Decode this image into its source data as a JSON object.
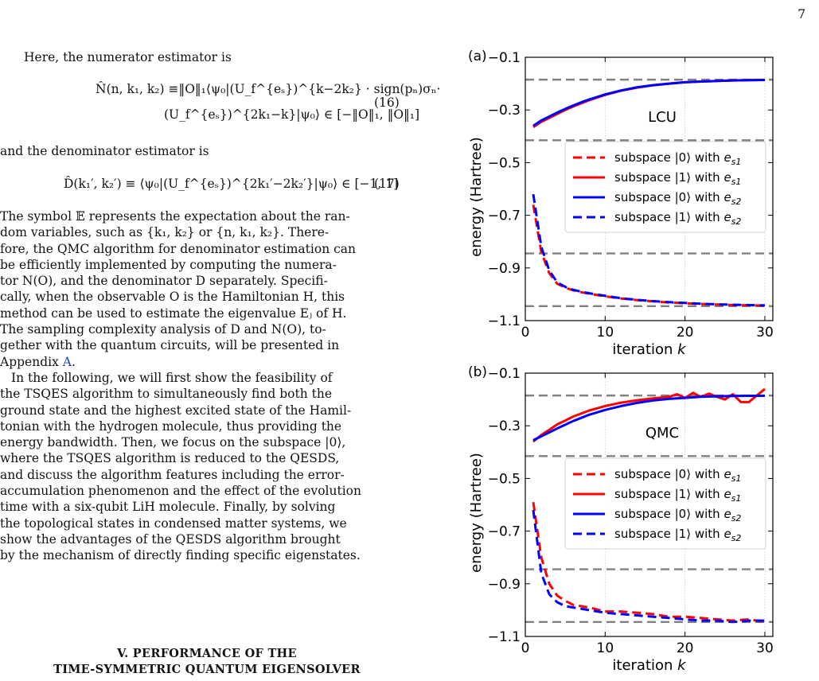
{
  "page_number": "7",
  "text": {
    "p1": "Here, the numerator estimator is",
    "eq16_line1": "N̂(n, k₁, k₂) ≡‖O‖₁⟨ψ₀|(U_f^{eₛ})^{k−2k₂} · sign(pₙ)σₙ·",
    "eq16_line2": "(U_f^{eₛ})^{2k₁−k}|ψ₀⟩ ∈ [−‖O‖₁, ‖O‖₁]",
    "eq16_num": "(16)",
    "p2": "and the denominator estimator is",
    "eq17": "D̂(k₁′, k₂′) ≡ ⟨ψ₀|(U_f^{eₛ})^{2k₁′−2k₂′}|ψ₀⟩ ∈ [−1, 1]",
    "eq17_num": "(17)",
    "p3_lines": [
      "The symbol 𝔼 represents the expectation about the ran-",
      "dom variables, such as {k₁, k₂} or {n, k₁, k₂}. There-",
      "fore, the QMC algorithm for denominator estimation can",
      "be efficiently implemented by computing the numera-",
      "tor N(O), and the denominator D separately. Specifi-",
      "cally, when the observable O is the Hamiltonian H, this",
      "method can be used to estimate the eigenvalue Eⱼ of H.",
      "The sampling complexity analysis of D and N(O), to-",
      "gether with the quantum circuits, will be presented in"
    ],
    "p3_last_prefix": "Appendix ",
    "p3_link": "A",
    "p3_last_suffix": ".",
    "p4_lines": [
      "In the following, we will first show the feasibility of",
      "the TSQES algorithm to simultaneously find both the",
      "ground state and the highest excited state of the Hamil-",
      "tonian with the hydrogen molecule, thus providing the",
      "energy bandwidth. Then, we focus on the subspace |0⟩,",
      "where the TSQES algorithm is reduced to the QESDS,",
      "and discuss the algorithm features including the error-",
      "accumulation phenomenon and the effect of the evolution",
      "time with a six-qubit LiH molecule. Finally, by solving",
      "the topological states in condensed matter systems, we",
      "show the advantages of the QESDS algorithm brought",
      "by the mechanism of directly finding specific eigenstates."
    ],
    "heading_line1": "V. PERFORMANCE OF THE",
    "heading_line2": "TIME-SYMMETRIC QUANTUM EIGENSOLVER"
  },
  "chart_data": [
    {
      "type": "line",
      "panel_label": "(a)",
      "annotation": "LCU",
      "xlabel": "iteration k",
      "ylabel": "energy (Hartree)",
      "xlim": [
        0,
        31
      ],
      "ylim": [
        -1.1,
        -0.1
      ],
      "xticks": [
        0,
        10,
        20,
        30
      ],
      "yticks": [
        -1.1,
        -0.9,
        -0.7,
        -0.5,
        -0.3,
        -0.1
      ],
      "ytick_labels": [
        "−1.1",
        "−0.9",
        "−0.7",
        "−0.5",
        "−0.3",
        "−0.1"
      ],
      "hlines": [
        -0.185,
        -0.415,
        -0.845,
        -1.045
      ],
      "legend": "upper right",
      "series": [
        {
          "name": "subspace |0⟩ with e_s1",
          "color": "#ff0000",
          "dash": "dashed",
          "x": [
            1,
            2,
            3,
            4,
            5,
            6,
            7,
            8,
            10,
            12,
            14,
            16,
            18,
            20,
            22,
            24,
            26,
            28,
            30
          ],
          "y": [
            -0.66,
            -0.84,
            -0.92,
            -0.96,
            -0.975,
            -0.985,
            -0.992,
            -0.998,
            -1.008,
            -1.016,
            -1.022,
            -1.027,
            -1.031,
            -1.034,
            -1.037,
            -1.039,
            -1.041,
            -1.042,
            -1.043
          ]
        },
        {
          "name": "subspace |1⟩ with e_s1",
          "color": "#ff0000",
          "dash": "solid",
          "x": [
            1,
            2,
            3,
            4,
            5,
            6,
            7,
            8,
            10,
            12,
            14,
            16,
            18,
            20,
            22,
            24,
            26,
            28,
            30
          ],
          "y": [
            -0.365,
            -0.345,
            -0.33,
            -0.315,
            -0.3,
            -0.287,
            -0.275,
            -0.263,
            -0.243,
            -0.227,
            -0.215,
            -0.206,
            -0.2,
            -0.195,
            -0.192,
            -0.19,
            -0.188,
            -0.187,
            -0.186
          ]
        },
        {
          "name": "subspace |0⟩ with e_s2",
          "color": "#0000ff",
          "dash": "solid",
          "x": [
            1,
            2,
            3,
            4,
            5,
            6,
            7,
            8,
            10,
            12,
            14,
            16,
            18,
            20,
            22,
            24,
            26,
            28,
            30
          ],
          "y": [
            -0.36,
            -0.34,
            -0.325,
            -0.31,
            -0.296,
            -0.283,
            -0.271,
            -0.26,
            -0.241,
            -0.226,
            -0.214,
            -0.206,
            -0.2,
            -0.195,
            -0.192,
            -0.19,
            -0.188,
            -0.187,
            -0.186
          ]
        },
        {
          "name": "subspace |1⟩ with e_s2",
          "color": "#0000ff",
          "dash": "dashed",
          "x": [
            1,
            2,
            3,
            4,
            5,
            6,
            7,
            8,
            10,
            12,
            14,
            16,
            18,
            20,
            22,
            24,
            26,
            28,
            30
          ],
          "y": [
            -0.62,
            -0.82,
            -0.91,
            -0.955,
            -0.972,
            -0.983,
            -0.99,
            -0.996,
            -1.006,
            -1.015,
            -1.021,
            -1.026,
            -1.03,
            -1.033,
            -1.036,
            -1.038,
            -1.04,
            -1.041,
            -1.042
          ]
        }
      ]
    },
    {
      "type": "line",
      "panel_label": "(b)",
      "annotation": "QMC",
      "xlabel": "iteration k",
      "ylabel": "energy (Hartree)",
      "xlim": [
        0,
        31
      ],
      "ylim": [
        -1.1,
        -0.1
      ],
      "xticks": [
        0,
        10,
        20,
        30
      ],
      "yticks": [
        -1.1,
        -0.9,
        -0.7,
        -0.5,
        -0.3,
        -0.1
      ],
      "ytick_labels": [
        "−1.1",
        "−0.9",
        "−0.7",
        "−0.5",
        "−0.3",
        "−0.1"
      ],
      "hlines": [
        -0.185,
        -0.415,
        -0.845,
        -1.045
      ],
      "legend": "upper right",
      "series": [
        {
          "name": "subspace |0⟩ with e_s1",
          "color": "#ff0000",
          "dash": "dashed",
          "x": [
            1,
            2,
            3,
            4,
            5,
            6,
            8,
            10,
            12,
            14,
            16,
            18,
            20,
            22,
            24,
            26,
            28,
            30
          ],
          "y": [
            -0.59,
            -0.8,
            -0.9,
            -0.945,
            -0.965,
            -0.98,
            -0.99,
            -1.005,
            -1.005,
            -1.01,
            -1.015,
            -1.025,
            -1.025,
            -1.03,
            -1.035,
            -1.04,
            -1.035,
            -1.045
          ]
        },
        {
          "name": "subspace |1⟩ with e_s1",
          "color": "#ff0000",
          "dash": "solid",
          "x": [
            1,
            2,
            3,
            4,
            5,
            6,
            8,
            10,
            12,
            14,
            16,
            18,
            19,
            20,
            21,
            22,
            23,
            24,
            25,
            26,
            27,
            28,
            29,
            30
          ],
          "y": [
            -0.36,
            -0.335,
            -0.315,
            -0.295,
            -0.28,
            -0.265,
            -0.242,
            -0.225,
            -0.212,
            -0.203,
            -0.196,
            -0.19,
            -0.18,
            -0.195,
            -0.175,
            -0.19,
            -0.178,
            -0.19,
            -0.2,
            -0.18,
            -0.21,
            -0.21,
            -0.185,
            -0.16
          ]
        },
        {
          "name": "subspace |0⟩ with e_s2",
          "color": "#0000ff",
          "dash": "solid",
          "x": [
            1,
            2,
            3,
            4,
            5,
            6,
            8,
            10,
            12,
            14,
            16,
            18,
            20,
            22,
            24,
            26,
            28,
            30
          ],
          "y": [
            -0.355,
            -0.34,
            -0.325,
            -0.31,
            -0.296,
            -0.282,
            -0.258,
            -0.24,
            -0.225,
            -0.213,
            -0.204,
            -0.198,
            -0.194,
            -0.19,
            -0.188,
            -0.187,
            -0.186,
            -0.186
          ]
        },
        {
          "name": "subspace |1⟩ with e_s2",
          "color": "#0000ff",
          "dash": "dashed",
          "x": [
            1,
            2,
            3,
            4,
            5,
            6,
            8,
            10,
            12,
            14,
            16,
            18,
            20,
            22,
            24,
            26,
            28,
            30
          ],
          "y": [
            -0.62,
            -0.86,
            -0.94,
            -0.97,
            -0.985,
            -0.99,
            -1.0,
            -1.01,
            -1.015,
            -1.02,
            -1.025,
            -1.03,
            -1.035,
            -1.04,
            -1.04,
            -1.045,
            -1.04,
            -1.04
          ]
        }
      ]
    }
  ]
}
